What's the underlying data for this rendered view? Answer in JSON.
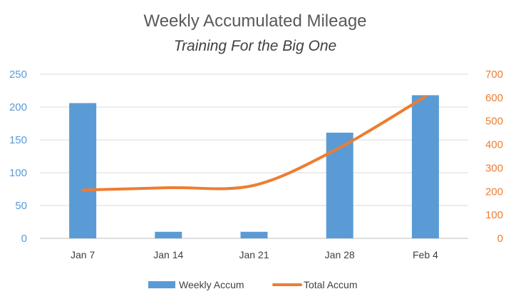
{
  "chart_data": {
    "type": "bar",
    "title": "Weekly Accumulated Mileage",
    "subtitle": "Training For the Big One",
    "categories": [
      "Jan 7",
      "Jan 14",
      "Jan 21",
      "Jan 28",
      "Feb 4"
    ],
    "series": [
      {
        "name": "Weekly Accum",
        "type": "bar",
        "axis": "left",
        "color": "#5b9bd5",
        "values": [
          206,
          10,
          10,
          161,
          218
        ]
      },
      {
        "name": "Total Accum",
        "type": "line",
        "axis": "right",
        "color": "#ed7d31",
        "values": [
          206,
          216,
          226,
          387,
          605
        ]
      }
    ],
    "y_left": {
      "min": 0,
      "max": 250,
      "step": 50,
      "color": "#5b9bd5",
      "ticks": [
        "0",
        "50",
        "100",
        "150",
        "200",
        "250"
      ]
    },
    "y_right": {
      "min": 0,
      "max": 700,
      "step": 100,
      "color": "#ed7d31",
      "ticks": [
        "0",
        "100",
        "200",
        "300",
        "400",
        "500",
        "600",
        "700"
      ]
    },
    "grid": true,
    "legend_position": "bottom"
  }
}
